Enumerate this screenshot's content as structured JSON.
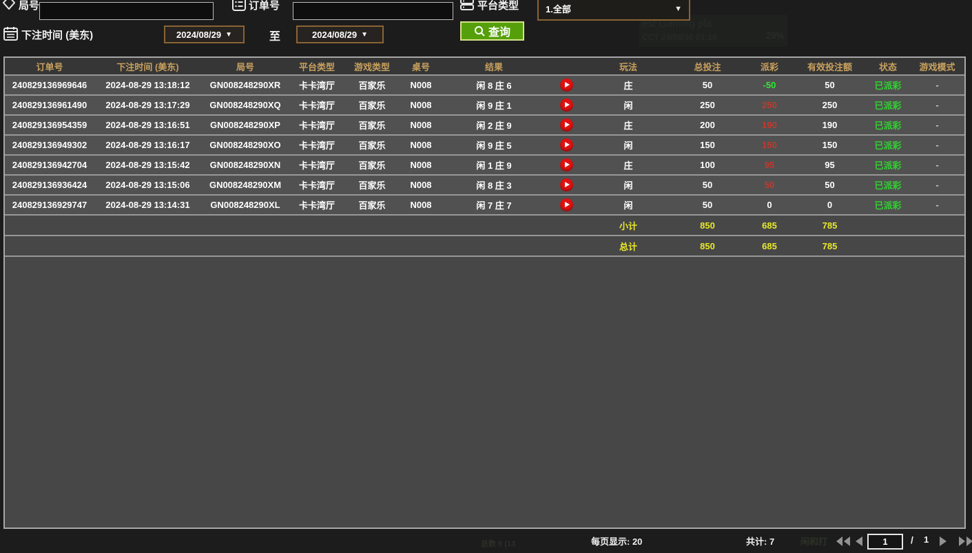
{
  "filters": {
    "game_no_label": "局号",
    "game_no_value": "",
    "order_no_label": "订单号",
    "order_no_value": "",
    "platform_label": "平台类型",
    "platform_value": "1.全部",
    "dropdown_arrow": "▼",
    "bet_time_label": "下注时间 (美东)",
    "date_from": "2024/08/29",
    "to_label": "至",
    "date_to": "2024/08/29",
    "search_label": "查询"
  },
  "table": {
    "headers": [
      "订单号",
      "下注时间 (美东)",
      "局号",
      "平台类型",
      "游戏类型",
      "桌号",
      "结果",
      "",
      "玩法",
      "总投注",
      "派彩",
      "有效投注额",
      "状态",
      "游戏模式"
    ],
    "rows": [
      {
        "order": "240829136969646",
        "time": "2024-08-29 13:18:12",
        "game": "GN008248290XR",
        "platform": "卡卡湾厅",
        "type": "百家乐",
        "table": "N008",
        "result": "闲 8 庄 6",
        "play": "庄",
        "bet": "50",
        "payout": "-50",
        "payout_color": "green",
        "valid": "50",
        "status": "已派彩",
        "mode": "-"
      },
      {
        "order": "240829136961490",
        "time": "2024-08-29 13:17:29",
        "game": "GN008248290XQ",
        "platform": "卡卡湾厅",
        "type": "百家乐",
        "table": "N008",
        "result": "闲 9 庄 1",
        "play": "闲",
        "bet": "250",
        "payout": "250",
        "payout_color": "red",
        "valid": "250",
        "status": "已派彩",
        "mode": "-"
      },
      {
        "order": "240829136954359",
        "time": "2024-08-29 13:16:51",
        "game": "GN008248290XP",
        "platform": "卡卡湾厅",
        "type": "百家乐",
        "table": "N008",
        "result": "闲 2 庄 9",
        "play": "庄",
        "bet": "200",
        "payout": "190",
        "payout_color": "red",
        "valid": "190",
        "status": "已派彩",
        "mode": "-"
      },
      {
        "order": "240829136949302",
        "time": "2024-08-29 13:16:17",
        "game": "GN008248290XO",
        "platform": "卡卡湾厅",
        "type": "百家乐",
        "table": "N008",
        "result": "闲 9 庄 5",
        "play": "闲",
        "bet": "150",
        "payout": "150",
        "payout_color": "red",
        "valid": "150",
        "status": "已派彩",
        "mode": "-"
      },
      {
        "order": "240829136942704",
        "time": "2024-08-29 13:15:42",
        "game": "GN008248290XN",
        "platform": "卡卡湾厅",
        "type": "百家乐",
        "table": "N008",
        "result": "闲 1 庄 9",
        "play": "庄",
        "bet": "100",
        "payout": "95",
        "payout_color": "red",
        "valid": "95",
        "status": "已派彩",
        "mode": "-"
      },
      {
        "order": "240829136936424",
        "time": "2024-08-29 13:15:06",
        "game": "GN008248290XM",
        "platform": "卡卡湾厅",
        "type": "百家乐",
        "table": "N008",
        "result": "闲 8 庄 3",
        "play": "闲",
        "bet": "50",
        "payout": "50",
        "payout_color": "red",
        "valid": "50",
        "status": "已派彩",
        "mode": "-"
      },
      {
        "order": "240829136929747",
        "time": "2024-08-29 13:14:31",
        "game": "GN008248290XL",
        "platform": "卡卡湾厅",
        "type": "百家乐",
        "table": "N008",
        "result": "闲 7 庄 7",
        "play": "闲",
        "bet": "50",
        "payout": "0",
        "payout_color": "white",
        "valid": "0",
        "status": "已派彩",
        "mode": "-"
      }
    ],
    "subtotal": {
      "label": "小计",
      "bet": "850",
      "payout": "685",
      "valid": "785"
    },
    "total": {
      "label": "总计",
      "bet": "850",
      "payout": "685",
      "valid": "785"
    }
  },
  "footer": {
    "page_size_label": "每页显示: 20",
    "total_label": "共计: 7",
    "page_value": "1",
    "page_separator": "/",
    "page_total": "1"
  },
  "colors": {
    "header_gold": "#c9a15e",
    "win_red": "#c03a2e",
    "loss_green": "#33e633",
    "status_green": "#2fd32f",
    "sum_yellow": "#e9e92a",
    "button_green": "#55a00a",
    "picker_brown_border": "#8a6434"
  },
  "background_artifacts": {
    "wm1": "est Gaming pla",
    "wm2": "CCT 24/08/30 01:18",
    "wm3": "29%",
    "wm4": "闲和打",
    "wm5": "总数 9 (13"
  }
}
